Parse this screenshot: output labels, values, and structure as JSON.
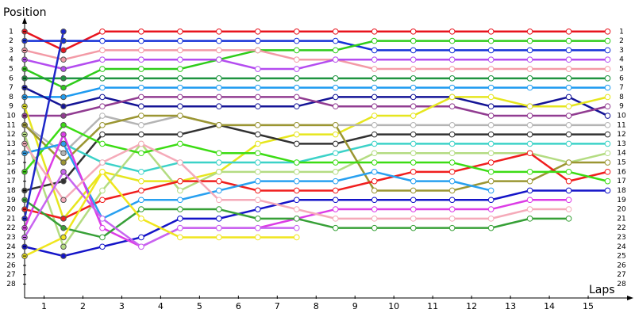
{
  "chart_data": {
    "type": "line",
    "y_label": "Position",
    "x_label": "Laps",
    "x": [
      0,
      1,
      2,
      3,
      4,
      5,
      6,
      7,
      8,
      9,
      10,
      11,
      12,
      13,
      14,
      15
    ],
    "xlim": [
      0,
      15.5
    ],
    "ylim": [
      0,
      29.4
    ],
    "y_reversed": true,
    "xticks": [
      {
        "value": 0.5,
        "label": "1"
      },
      {
        "value": 1.5,
        "label": "2"
      },
      {
        "value": 2.5,
        "label": "3"
      },
      {
        "value": 3.5,
        "label": "4"
      },
      {
        "value": 4.5,
        "label": "5"
      },
      {
        "value": 5.5,
        "label": "6"
      },
      {
        "value": 6.5,
        "label": "7"
      },
      {
        "value": 7.5,
        "label": "8"
      },
      {
        "value": 8.5,
        "label": "9"
      },
      {
        "value": 9.5,
        "label": "10"
      },
      {
        "value": 10.5,
        "label": "11"
      },
      {
        "value": 11.5,
        "label": "12"
      },
      {
        "value": 12.5,
        "label": "13"
      },
      {
        "value": 13.5,
        "label": "14"
      },
      {
        "value": 14.5,
        "label": "15"
      }
    ],
    "yticks": [
      1,
      2,
      3,
      4,
      5,
      6,
      7,
      8,
      9,
      10,
      11,
      12,
      13,
      14,
      15,
      16,
      17,
      18,
      19,
      20,
      21,
      22,
      23,
      24,
      25,
      26,
      27,
      28
    ],
    "grid": false,
    "series": [
      {
        "color": "#e8141e",
        "values": [
          1,
          3,
          1,
          1,
          1,
          1,
          1,
          1,
          1,
          1,
          1,
          1,
          1,
          1,
          1,
          1
        ]
      },
      {
        "color": "#1431d8",
        "values": [
          2,
          2,
          2,
          2,
          2,
          2,
          2,
          2,
          2,
          3,
          3,
          3,
          3,
          3,
          3,
          3
        ]
      },
      {
        "color": "#2ecc1a",
        "values": [
          5,
          7,
          5,
          5,
          5,
          4,
          3,
          3,
          3,
          2,
          2,
          2,
          2,
          2,
          2,
          2
        ]
      },
      {
        "color": "#f39aa6",
        "values": [
          3,
          4,
          3,
          3,
          3,
          3,
          3,
          4,
          4,
          5,
          5,
          5,
          5,
          5,
          5,
          5
        ]
      },
      {
        "color": "#b44cf0",
        "values": [
          4,
          5,
          4,
          4,
          4,
          4,
          5,
          5,
          4,
          4,
          4,
          4,
          4,
          4,
          4,
          4
        ]
      },
      {
        "color": "#1e9440",
        "values": [
          6,
          6,
          6,
          6,
          6,
          6,
          6,
          6,
          6,
          6,
          6,
          6,
          6,
          6,
          6,
          6
        ]
      },
      {
        "color": "#1e9bf0",
        "values": [
          8,
          8,
          7,
          7,
          7,
          7,
          7,
          7,
          7,
          7,
          7,
          7,
          7,
          7,
          7,
          7
        ]
      },
      {
        "color": "#141496",
        "values": [
          7,
          9,
          8,
          9,
          9,
          9,
          9,
          9,
          8,
          8,
          8,
          8,
          9,
          9,
          8,
          10
        ]
      },
      {
        "color": "#913c91",
        "values": [
          10,
          10,
          9,
          8,
          8,
          8,
          8,
          8,
          9,
          9,
          9,
          9,
          10,
          10,
          10,
          9
        ]
      },
      {
        "color": "#e6e61e",
        "values": [
          9,
          21,
          16,
          17,
          17,
          16,
          13,
          12,
          12,
          10,
          10,
          8,
          8,
          9,
          9,
          8
        ]
      },
      {
        "color": "#b4b4b4",
        "values": [
          11,
          14,
          10,
          11,
          10,
          11,
          11,
          11,
          11,
          11,
          11,
          11,
          11,
          11,
          11,
          11
        ]
      },
      {
        "color": "#323232",
        "values": [
          18,
          17,
          12,
          12,
          12,
          11,
          12,
          13,
          13,
          12,
          12,
          12,
          12,
          12,
          12,
          12
        ]
      },
      {
        "color": "#3cd2c8",
        "values": [
          14,
          13,
          15,
          16,
          15,
          15,
          15,
          15,
          14,
          13,
          13,
          13,
          13,
          13,
          13,
          13
        ]
      },
      {
        "color": "#b4dc82",
        "values": [
          12,
          24,
          18,
          13,
          18,
          16,
          16,
          16,
          16,
          14,
          14,
          14,
          14,
          14,
          15,
          14
        ]
      },
      {
        "color": "#9b9632",
        "values": [
          11,
          15,
          11,
          10,
          10,
          11,
          11,
          11,
          11,
          18,
          18,
          18,
          17,
          17,
          15,
          15
        ]
      },
      {
        "color": "#f01e1e",
        "values": [
          20,
          21,
          19,
          18,
          17,
          17,
          18,
          18,
          18,
          17,
          16,
          16,
          15,
          14,
          17,
          16
        ]
      },
      {
        "color": "#3cdc14",
        "values": [
          16,
          11,
          13,
          14,
          13,
          14,
          14,
          15,
          15,
          15,
          15,
          15,
          16,
          16,
          16,
          17
        ]
      },
      {
        "color": "#1414c8",
        "values": [
          24,
          25,
          24,
          23,
          21,
          21,
          20,
          19,
          19,
          19,
          19,
          19,
          19,
          18,
          18,
          18
        ]
      },
      {
        "color": "#28a0f0",
        "values": [
          14,
          13,
          21,
          19,
          19,
          18,
          17,
          17,
          17,
          16,
          17,
          17,
          18,
          null,
          null,
          null
        ]
      },
      {
        "color": "#dc3ce6",
        "values": [
          22,
          12,
          22,
          24,
          22,
          22,
          22,
          21,
          20,
          20,
          20,
          20,
          20,
          19,
          19,
          null
        ]
      },
      {
        "color": "#f5aab9",
        "values": [
          13,
          19,
          15,
          13,
          15,
          19,
          19,
          20,
          21,
          21,
          21,
          21,
          21,
          20,
          20,
          null
        ]
      },
      {
        "color": "#37a037",
        "values": [
          19,
          22,
          23,
          20,
          20,
          20,
          21,
          21,
          22,
          22,
          22,
          22,
          22,
          21,
          21,
          null
        ]
      },
      {
        "color": "#c864f0",
        "values": [
          23,
          16,
          21,
          24,
          22,
          22,
          22,
          22,
          null,
          null,
          null,
          null,
          null,
          null,
          null,
          null
        ]
      },
      {
        "color": "#f0e61e",
        "values": [
          25,
          23,
          16,
          21,
          23,
          23,
          23,
          23,
          null,
          null,
          null,
          null,
          null,
          null,
          null,
          null
        ]
      },
      {
        "color": "#1e28c8",
        "values": [
          21,
          1,
          null,
          null,
          null,
          null,
          null,
          null,
          null,
          null,
          null,
          null,
          null,
          null,
          null,
          null
        ]
      }
    ]
  }
}
